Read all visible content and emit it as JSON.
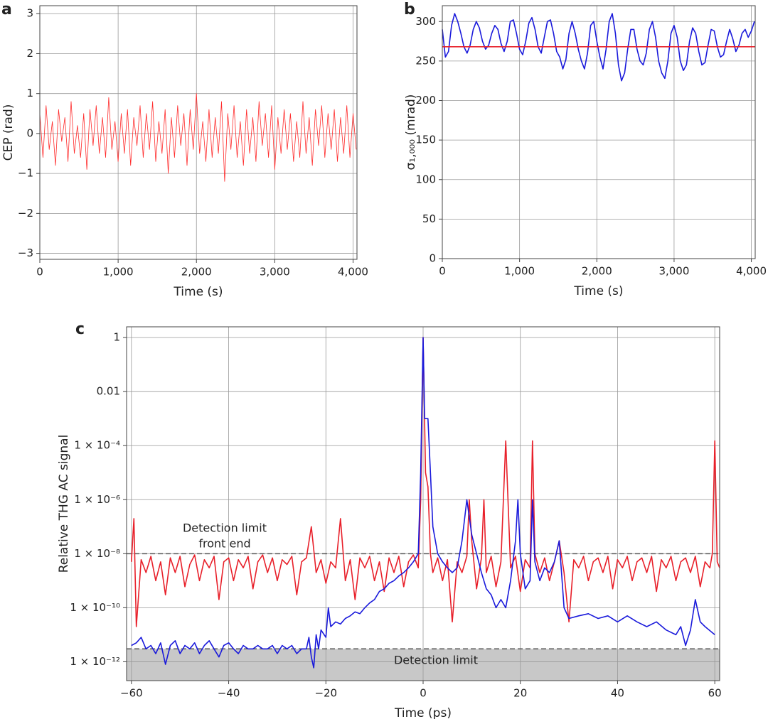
{
  "chart_data": [
    {
      "type": "line",
      "panel_label": "a",
      "xlabel": "Time (s)",
      "ylabel": "CEP (rad)",
      "xlim": [
        0,
        4050
      ],
      "ylim": [
        -3.15,
        3.2
      ],
      "xticks": [
        0,
        {
          "value": 1000,
          "label": "1,000"
        },
        {
          "value": 2000,
          "label": "2,000"
        },
        {
          "value": 3000,
          "label": "3,000"
        },
        {
          "value": 4000,
          "label": "4,000"
        }
      ],
      "yticks": [
        {
          "value": -3,
          "label": "−3"
        },
        {
          "value": -2,
          "label": "−2"
        },
        {
          "value": -1,
          "label": "−1"
        },
        0,
        1,
        2,
        3
      ],
      "grid": true,
      "series": [
        {
          "color": "#ff2a2a",
          "x": [
            0,
            40,
            80,
            120,
            160,
            200,
            240,
            280,
            320,
            360,
            400,
            440,
            480,
            520,
            560,
            600,
            640,
            680,
            720,
            760,
            800,
            840,
            880,
            920,
            960,
            1000,
            1040,
            1080,
            1120,
            1160,
            1200,
            1240,
            1280,
            1320,
            1360,
            1400,
            1440,
            1480,
            1520,
            1560,
            1600,
            1640,
            1680,
            1720,
            1760,
            1800,
            1840,
            1880,
            1920,
            1960,
            2000,
            2040,
            2080,
            2120,
            2160,
            2200,
            2240,
            2280,
            2320,
            2360,
            2400,
            2440,
            2480,
            2520,
            2560,
            2600,
            2640,
            2680,
            2720,
            2760,
            2800,
            2840,
            2880,
            2920,
            2960,
            3000,
            3040,
            3080,
            3120,
            3160,
            3200,
            3240,
            3280,
            3320,
            3360,
            3400,
            3440,
            3480,
            3520,
            3560,
            3600,
            3640,
            3680,
            3720,
            3760,
            3800,
            3840,
            3880,
            3920,
            3960,
            4000,
            4040
          ],
          "values": [
            0.5,
            -0.6,
            0.7,
            -0.4,
            0.3,
            -0.8,
            0.6,
            -0.2,
            0.4,
            -0.7,
            0.8,
            -0.5,
            0.2,
            -0.6,
            0.5,
            -0.9,
            0.6,
            -0.3,
            0.7,
            -0.5,
            0.4,
            -0.6,
            0.9,
            -0.4,
            0.3,
            -0.7,
            0.5,
            -0.5,
            0.6,
            -0.8,
            0.4,
            -0.3,
            0.7,
            -0.6,
            0.5,
            -0.4,
            0.8,
            -0.7,
            0.3,
            -0.5,
            0.6,
            -1.0,
            0.4,
            -0.6,
            0.7,
            -0.3,
            0.5,
            -0.8,
            0.6,
            -0.4,
            1.0,
            -0.5,
            0.3,
            -0.7,
            0.6,
            -0.6,
            0.4,
            -0.5,
            0.8,
            -1.2,
            0.5,
            -0.4,
            0.7,
            -0.6,
            0.3,
            -0.8,
            0.6,
            -0.5,
            0.4,
            -0.7,
            0.8,
            -0.3,
            0.5,
            -0.6,
            0.7,
            -0.9,
            0.4,
            -0.5,
            0.6,
            -0.4,
            0.5,
            -0.7,
            0.3,
            -0.6,
            0.8,
            -0.5,
            0.4,
            -0.8,
            0.6,
            -0.3,
            0.7,
            -0.6,
            0.5,
            -0.4,
            0.6,
            -0.7,
            0.4,
            -0.5,
            0.7,
            -0.6,
            0.5,
            -0.4
          ]
        }
      ]
    },
    {
      "type": "line",
      "panel_label": "b",
      "xlabel": "Time (s)",
      "ylabel": "σ₁,₀₀₀ (mrad)",
      "xlim": [
        0,
        4050
      ],
      "ylim": [
        0,
        320
      ],
      "xticks": [
        0,
        {
          "value": 1000,
          "label": "1,000"
        },
        {
          "value": 2000,
          "label": "2,000"
        },
        {
          "value": 3000,
          "label": "3,000"
        },
        {
          "value": 4000,
          "label": "4,000"
        }
      ],
      "yticks": [
        0,
        50,
        100,
        150,
        200,
        250,
        300
      ],
      "grid": true,
      "series": [
        {
          "color": "#1a1adb",
          "x": [
            0,
            40,
            80,
            120,
            160,
            200,
            240,
            280,
            320,
            360,
            400,
            440,
            480,
            520,
            560,
            600,
            640,
            680,
            720,
            760,
            800,
            840,
            880,
            920,
            960,
            1000,
            1040,
            1080,
            1120,
            1160,
            1200,
            1240,
            1280,
            1320,
            1360,
            1400,
            1440,
            1480,
            1520,
            1560,
            1600,
            1640,
            1680,
            1720,
            1760,
            1800,
            1840,
            1880,
            1920,
            1960,
            2000,
            2040,
            2080,
            2120,
            2160,
            2200,
            2240,
            2280,
            2320,
            2360,
            2400,
            2440,
            2480,
            2520,
            2560,
            2600,
            2640,
            2680,
            2720,
            2760,
            2800,
            2840,
            2880,
            2920,
            2960,
            3000,
            3040,
            3080,
            3120,
            3160,
            3200,
            3240,
            3280,
            3320,
            3360,
            3400,
            3440,
            3480,
            3520,
            3560,
            3600,
            3640,
            3680,
            3720,
            3760,
            3800,
            3840,
            3880,
            3920,
            3960,
            4000,
            4040
          ],
          "values": [
            290,
            255,
            262,
            295,
            310,
            300,
            285,
            268,
            260,
            270,
            290,
            300,
            292,
            275,
            265,
            270,
            285,
            295,
            290,
            272,
            262,
            275,
            300,
            302,
            285,
            265,
            258,
            275,
            298,
            305,
            290,
            268,
            260,
            280,
            300,
            302,
            285,
            262,
            255,
            240,
            252,
            285,
            300,
            285,
            265,
            250,
            240,
            260,
            295,
            300,
            275,
            255,
            240,
            265,
            300,
            310,
            285,
            245,
            225,
            235,
            265,
            290,
            290,
            265,
            250,
            245,
            260,
            290,
            300,
            280,
            250,
            235,
            228,
            250,
            285,
            295,
            280,
            250,
            238,
            245,
            275,
            292,
            285,
            262,
            245,
            248,
            270,
            290,
            288,
            268,
            255,
            258,
            275,
            290,
            278,
            262,
            270,
            285,
            290,
            280,
            288,
            300
          ]
        },
        {
          "color": "#e8202a",
          "x": [
            0,
            4050
          ],
          "values": [
            268,
            268
          ]
        }
      ]
    },
    {
      "type": "line",
      "panel_label": "c",
      "xlabel": "Time (ps)",
      "ylabel": "Relative THG AC signal",
      "yscale": "log",
      "xlim": [
        -61,
        61
      ],
      "ylim": [
        2e-13,
        2.5
      ],
      "xticks": [
        {
          "value": -60,
          "label": "−60"
        },
        {
          "value": -40,
          "label": "−40"
        },
        {
          "value": -20,
          "label": "−20"
        },
        0,
        20,
        40,
        60
      ],
      "yticks": [
        {
          "value": 1e-12,
          "label": "1 × 10⁻¹²"
        },
        {
          "value": 1e-10,
          "label": "1 × 10⁻¹⁰"
        },
        {
          "value": 1e-08,
          "label": "1 × 10⁻⁸"
        },
        {
          "value": 1e-06,
          "label": "1 × 10⁻⁶"
        },
        {
          "value": 0.0001,
          "label": "1 × 10⁻⁴"
        },
        0.01,
        1
      ],
      "grid": true,
      "front_end_limit": 1e-08,
      "detection_limit": 3e-12,
      "front_end_label": [
        "Detection limit",
        "front end"
      ],
      "detection_label": "Detection limit",
      "series": [
        {
          "color": "#e8202a",
          "x": [
            -60,
            -59.5,
            -59,
            -58,
            -57,
            -56,
            -55,
            -54,
            -53,
            -52,
            -51,
            -50,
            -49,
            -48,
            -47,
            -46,
            -45,
            -44,
            -43,
            -42,
            -41,
            -40,
            -39,
            -38,
            -37,
            -36,
            -35,
            -34,
            -33,
            -32,
            -31,
            -30,
            -29,
            -28,
            -27,
            -26,
            -25,
            -24,
            -23,
            -22,
            -21,
            -20,
            -19,
            -18,
            -17,
            -16,
            -15,
            -14,
            -13,
            -12,
            -11,
            -10,
            -9,
            -8,
            -7,
            -6,
            -5,
            -4,
            -3,
            -2,
            -1,
            -0.5,
            0,
            0.5,
            1,
            1.5,
            2,
            3,
            4,
            5,
            6,
            7,
            8,
            9,
            9.5,
            10,
            11,
            12,
            12.5,
            13,
            14,
            15,
            16,
            17,
            18,
            19,
            20,
            21,
            22,
            22.5,
            23,
            24,
            25,
            26,
            27,
            28,
            29,
            30,
            31,
            32,
            33,
            34,
            35,
            36,
            37,
            38,
            39,
            40,
            41,
            42,
            43,
            44,
            45,
            46,
            47,
            48,
            49,
            50,
            51,
            52,
            53,
            54,
            55,
            56,
            57,
            58,
            59,
            59.5,
            60,
            60.5,
            61
          ],
          "values": [
            5e-09,
            2e-07,
            2e-11,
            6e-09,
            2e-09,
            8e-09,
            1e-09,
            5e-09,
            3e-10,
            7e-09,
            2e-09,
            8e-09,
            6e-10,
            4e-09,
            9e-09,
            1e-09,
            6e-09,
            3e-09,
            8e-09,
            2e-10,
            5e-09,
            7e-09,
            1e-09,
            6e-09,
            3e-09,
            8e-09,
            5e-10,
            5e-09,
            9e-09,
            2e-09,
            7e-09,
            1e-09,
            6e-09,
            4e-09,
            8e-09,
            3e-10,
            5e-09,
            7e-09,
            1e-07,
            2e-09,
            6e-09,
            8e-10,
            5e-09,
            3e-09,
            2e-07,
            1e-09,
            6e-09,
            2e-10,
            7e-09,
            3e-09,
            8e-09,
            1e-09,
            5e-09,
            4e-10,
            7e-09,
            2e-09,
            8e-09,
            6e-10,
            5e-09,
            9e-09,
            3e-09,
            1e-06,
            1,
            1e-05,
            3e-06,
            1e-08,
            2e-09,
            7e-09,
            1e-09,
            6e-09,
            3e-11,
            5e-09,
            2e-09,
            8e-09,
            1e-06,
            3e-08,
            5e-10,
            7e-09,
            1e-06,
            2e-09,
            8e-09,
            6e-10,
            5e-09,
            0.00015,
            3e-09,
            8e-09,
            4e-10,
            6e-09,
            3e-09,
            0.00015,
            1e-08,
            2e-09,
            7e-09,
            1e-09,
            5e-09,
            3e-08,
            2e-09,
            3e-11,
            6e-09,
            3e-09,
            8e-09,
            1e-09,
            5e-09,
            7e-09,
            2e-09,
            8e-09,
            5e-10,
            6e-09,
            3e-09,
            8e-09,
            1e-09,
            5e-09,
            7e-09,
            2e-09,
            8e-09,
            4e-10,
            6e-09,
            3e-09,
            8e-09,
            1e-09,
            5e-09,
            7e-09,
            2e-09,
            8e-09,
            6e-10,
            5e-09,
            3e-09,
            1e-08,
            0.00015,
            5e-09,
            3e-09
          ]
        },
        {
          "color": "#1a1adb",
          "x": [
            -60,
            -59,
            -58,
            -57,
            -56,
            -55,
            -54,
            -53,
            -52,
            -51,
            -50,
            -49,
            -48,
            -47,
            -46,
            -45,
            -44,
            -43,
            -42,
            -41,
            -40,
            -39,
            -38,
            -37,
            -36,
            -35,
            -34,
            -33,
            -32,
            -31,
            -30,
            -29,
            -28,
            -27,
            -26,
            -25,
            -24,
            -23.5,
            -23,
            -22.5,
            -22,
            -21.5,
            -21,
            -20,
            -19.5,
            -19,
            -18,
            -17,
            -16,
            -15,
            -14,
            -13,
            -12,
            -11,
            -10,
            -9,
            -8,
            -7,
            -6,
            -5,
            -4,
            -3,
            -2,
            -1,
            -0.5,
            0,
            0.3,
            1,
            1.5,
            2,
            3,
            4,
            5,
            6,
            7,
            8,
            9,
            10,
            11,
            12,
            13,
            14,
            15,
            16,
            17,
            18,
            19,
            19.5,
            20,
            21,
            22,
            22.5,
            23,
            24,
            25,
            26,
            27,
            28,
            29,
            30,
            32,
            34,
            36,
            38,
            40,
            42,
            44,
            46,
            48,
            50,
            52,
            53,
            54,
            55,
            56,
            57,
            58,
            60
          ],
          "values": [
            4e-12,
            5e-12,
            8e-12,
            3e-12,
            4e-12,
            2e-12,
            5e-12,
            8e-13,
            4e-12,
            6e-12,
            2e-12,
            4e-12,
            3e-12,
            5e-12,
            2e-12,
            4e-12,
            6e-12,
            3e-12,
            1.5e-12,
            4e-12,
            5e-12,
            3e-12,
            2e-12,
            4e-12,
            3e-12,
            3e-12,
            4e-12,
            3e-12,
            3e-12,
            4e-12,
            2e-12,
            4e-12,
            3e-12,
            4e-12,
            2e-12,
            3e-12,
            3e-12,
            8e-12,
            1.5e-12,
            6e-13,
            1e-11,
            3e-12,
            1.5e-11,
            8e-12,
            1e-10,
            2e-11,
            3e-11,
            2.5e-11,
            4e-11,
            5e-11,
            7e-11,
            6e-11,
            1e-10,
            1.5e-10,
            2e-10,
            4e-10,
            5e-10,
            8e-10,
            1e-09,
            1.5e-09,
            2e-09,
            3e-09,
            5e-09,
            1e-08,
            1e-05,
            1,
            0.001,
            0.001,
            1e-05,
            1e-07,
            1e-08,
            5e-09,
            3e-09,
            2e-09,
            3e-09,
            3e-08,
            1e-06,
            5e-08,
            1e-08,
            2e-09,
            5e-10,
            3e-10,
            1e-10,
            2e-10,
            1e-10,
            1e-09,
            3e-08,
            1e-06,
            1e-08,
            5e-10,
            1e-09,
            1e-06,
            5e-09,
            1e-09,
            3e-09,
            2e-09,
            5e-09,
            3e-08,
            1e-10,
            4e-11,
            5e-11,
            6e-11,
            4e-11,
            5e-11,
            3e-11,
            5e-11,
            3e-11,
            2e-11,
            3e-11,
            1.5e-11,
            1e-11,
            2e-11,
            4e-12,
            1.5e-11,
            2e-10,
            3e-11,
            2e-11,
            1e-11
          ]
        }
      ]
    }
  ]
}
